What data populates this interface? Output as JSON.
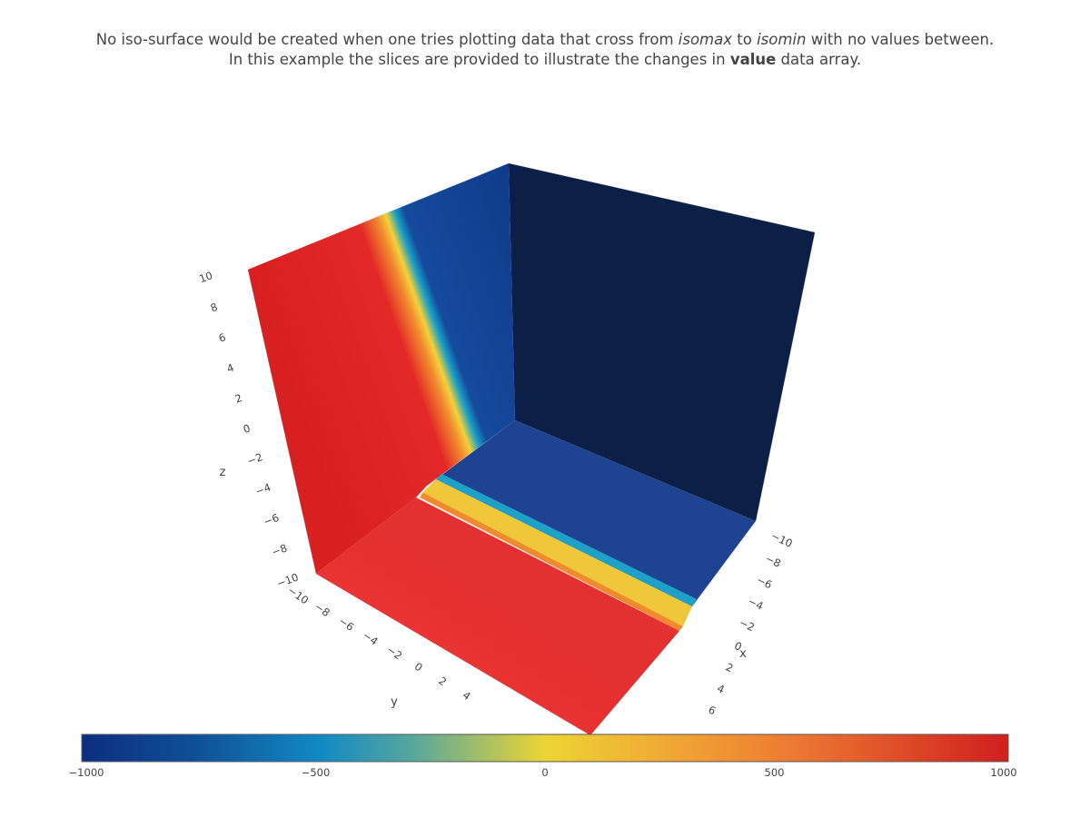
{
  "title": {
    "line1": {
      "before": "No iso-surface would be created when one tries plotting data that cross from ",
      "isomax": "isomax",
      "middle": " to ",
      "isomin": "isomin",
      "after": " with no values between."
    },
    "line2": {
      "before": "In this example the slices are provided to illustrate the changes in ",
      "value": "value",
      "after": " data array."
    }
  },
  "chart_data": {
    "type": "isosurface-slices",
    "value_range": [
      -1000,
      1000
    ],
    "slices": [
      {
        "axis": "x",
        "location": -10
      },
      {
        "axis": "y",
        "location": -10
      },
      {
        "axis": "z",
        "location": -10
      }
    ],
    "transition": {
      "axis": "x",
      "description_values": {
        "far_side": 1000,
        "near_side": -1000
      }
    },
    "axes": {
      "x": {
        "title": "x",
        "range": [
          -10,
          10
        ],
        "tick_labels": [
          "−10",
          "−8",
          "−6",
          "−4",
          "−2",
          "0",
          "2",
          "4",
          "6"
        ]
      },
      "y": {
        "title": "y",
        "range": [
          -10,
          10
        ],
        "tick_labels": [
          "−10",
          "−8",
          "−6",
          "−4",
          "−2",
          "0",
          "2",
          "4"
        ]
      },
      "z": {
        "title": "z",
        "range": [
          -10,
          10
        ],
        "tick_labels": [
          "−10",
          "−8",
          "−6",
          "−4",
          "−2",
          "0",
          "2",
          "4",
          "6",
          "8",
          "10"
        ]
      }
    },
    "colorbar": {
      "orientation": "horizontal",
      "tick_labels": [
        "−1000",
        "−500",
        "0",
        "500",
        "1000"
      ],
      "tick_values": [
        -1000,
        -500,
        0,
        500,
        1000
      ],
      "colorscale": [
        "#0d2d80",
        "#0f62a6",
        "#138ac4",
        "#e9d735",
        "#f1ac35",
        "#ed7d33",
        "#d11e1e"
      ]
    },
    "colors": {
      "high": "#e83232",
      "low_face": "#0b1f47",
      "mid_blue": "#1b3f8f"
    }
  }
}
